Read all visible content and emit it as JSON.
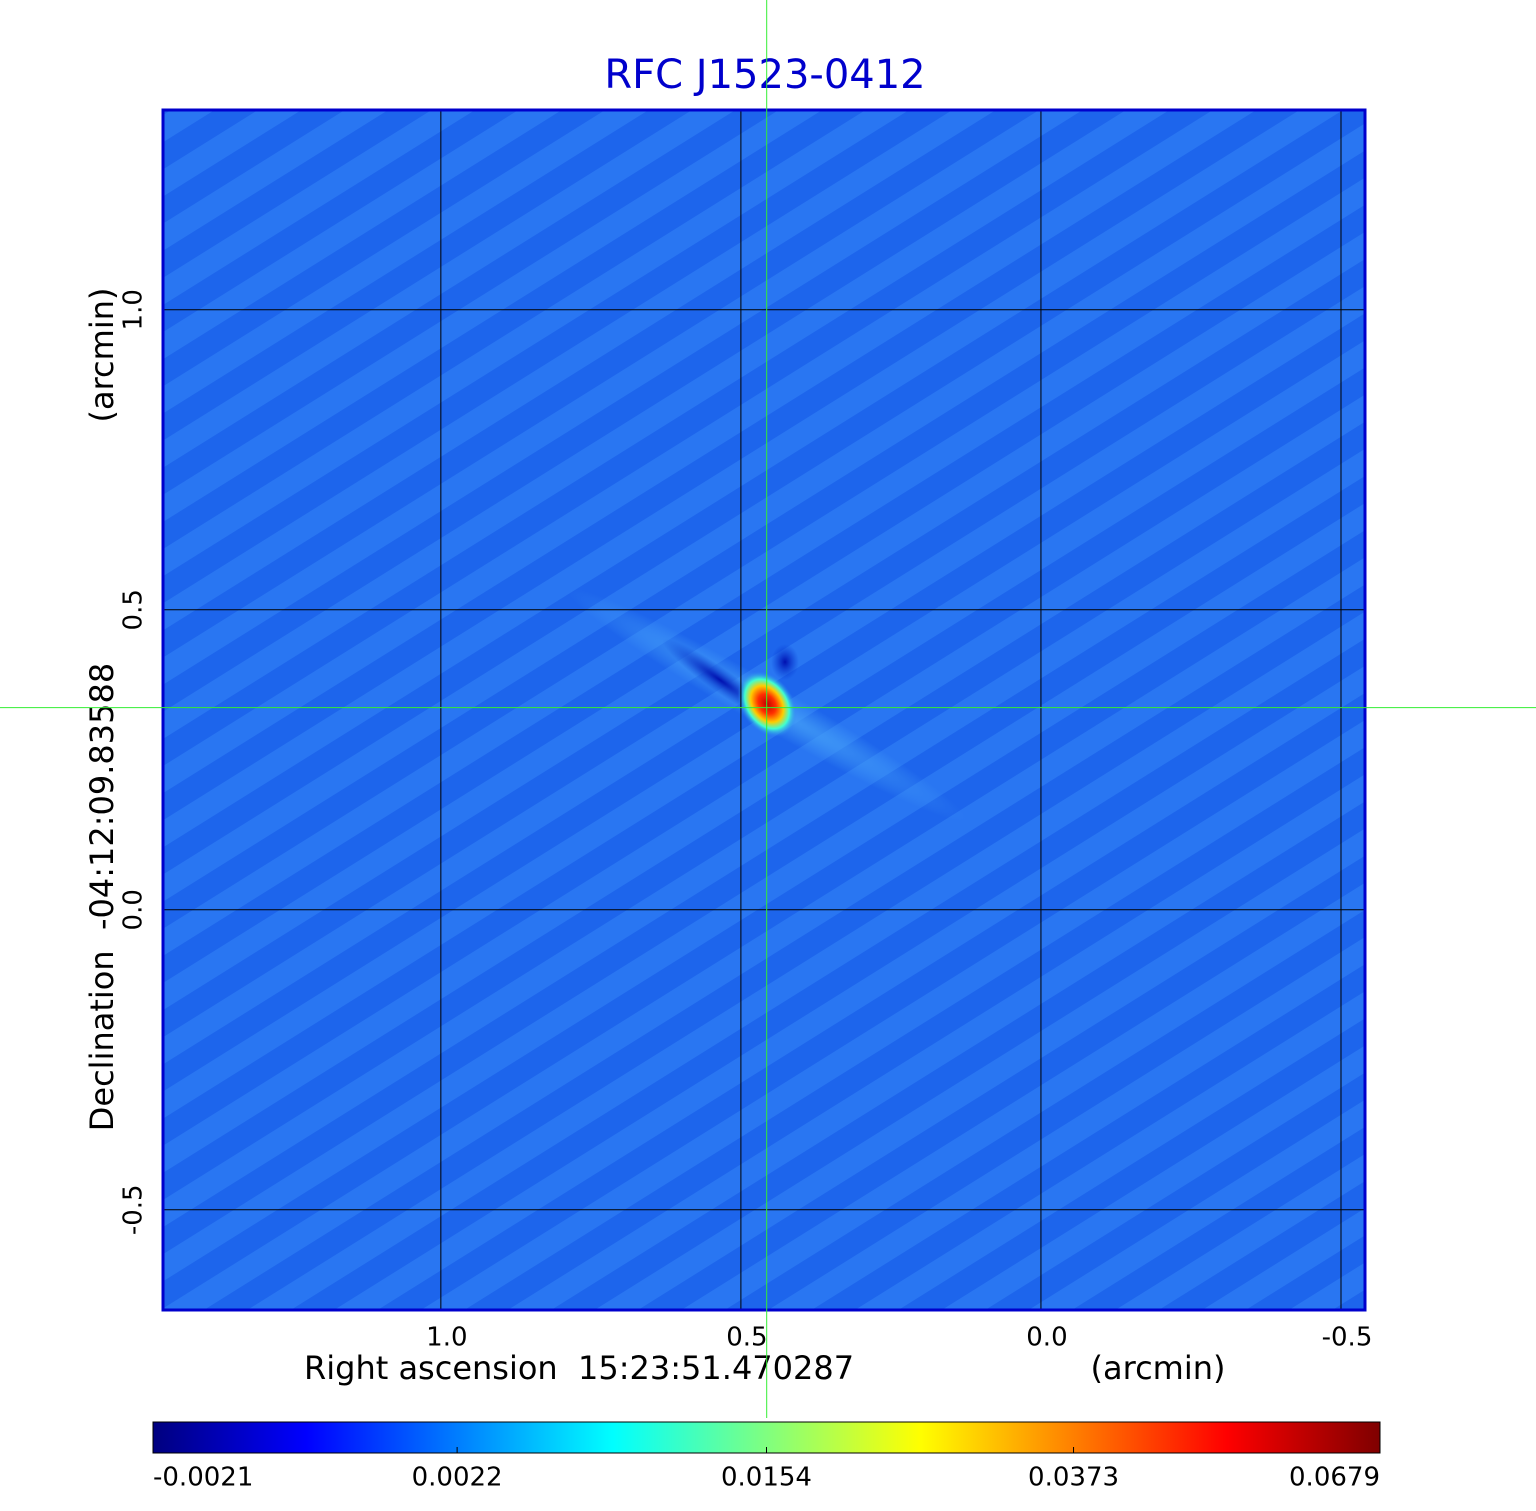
{
  "chart_data": {
    "type": "image",
    "title": "RFC J1523-0412",
    "x_label": "Right ascension  15:23:51.470287",
    "x_unit": "(arcmin)",
    "y_label": "Declination  -04:12:09.83588",
    "y_unit": "(arcmin)",
    "xlim": [
      1.463,
      -0.54
    ],
    "ylim": [
      -0.667,
      1.333
    ],
    "xticks": [
      {
        "value": 1,
        "label": "1.0"
      },
      0.5,
      {
        "value": 0,
        "label": "0.0"
      },
      -0.5
    ],
    "yticks": [
      -0.5,
      {
        "value": 0,
        "label": "0.0"
      },
      0.5,
      {
        "value": 1,
        "label": "1.0"
      }
    ],
    "grid": true,
    "crosshair": {
      "x": 0.457,
      "y": 0.337,
      "color": "#33ee33"
    },
    "colorbar": {
      "colormap": "jet",
      "scale": "sqrt",
      "lim": [
        -0.0021,
        0.0679
      ],
      "ticks": [
        -0.0021,
        0.0022,
        0.0154,
        0.0373,
        0.0679
      ]
    }
  }
}
